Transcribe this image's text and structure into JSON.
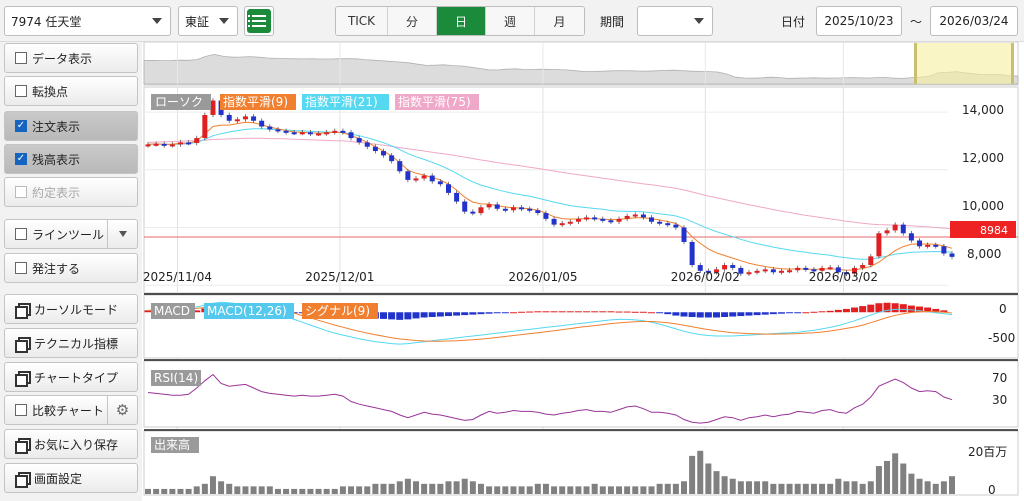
{
  "stock_select": {
    "value": "7974 任天堂"
  },
  "market_select": {
    "value": "東証"
  },
  "periods": [
    "TICK",
    "分",
    "日",
    "週",
    "月"
  ],
  "period_active": "日",
  "kikan_label": "期間",
  "kikan_select": {
    "value": ""
  },
  "date_label": "日付",
  "date_from": "2025/10/23",
  "date_sep": "～",
  "date_to": "2026/03/24",
  "sidebar": {
    "data_display": "データ表示",
    "turning_point": "転換点",
    "order_display": "注文表示",
    "position_display": "残高表示",
    "execution_display": "約定表示",
    "line_tool": "ラインツール",
    "order": "発注する",
    "cursor_mode": "カーソルモード",
    "technical": "テクニカル指標",
    "chart_type": "チャートタイプ",
    "compare_chart": "比較チャート",
    "favorites_save": "お気に入り保存",
    "screen_settings": "画面設定"
  },
  "legend_main": [
    "ローソク",
    "指数平滑(9)",
    "指数平滑(21)",
    "指数平滑(75)"
  ],
  "legend_macd": [
    "MACD",
    "MACD(12,26)",
    "シグナル(9)"
  ],
  "legend_rsi": "RSI(14)",
  "legend_volume": "出来高",
  "price_axis": [
    "14,000",
    "12,000",
    "10,000",
    "8,000"
  ],
  "current_price": "8984",
  "macd_axis": [
    "0",
    "-500"
  ],
  "rsi_axis": [
    "70",
    "30"
  ],
  "volume_axis": [
    "20百万",
    "0"
  ],
  "date_ticks": [
    "2025/11/04",
    "2025/12/01",
    "2026/01/05",
    "2026/02/02",
    "2026/03/02"
  ],
  "colors": {
    "accent": "#1b8a3a",
    "up": "#e02020",
    "down": "#2233cc",
    "ema9": "#f08030",
    "ema21": "#55d8f0",
    "ema75": "#f0a8c8",
    "rsi": "#993399",
    "volume": "#808080"
  },
  "chart_data": {
    "type": "candlestick",
    "closes": [
      12880,
      12900,
      12850,
      12880,
      12950,
      12930,
      13100,
      13900,
      14400,
      13900,
      13700,
      13750,
      13850,
      13700,
      13500,
      13400,
      13350,
      13300,
      13280,
      13300,
      13250,
      13260,
      13300,
      13350,
      13300,
      13100,
      12950,
      12800,
      12650,
      12500,
      12300,
      11950,
      11650,
      11700,
      11800,
      11600,
      11500,
      11200,
      10900,
      10550,
      10500,
      10700,
      10800,
      10650,
      10600,
      10700,
      10650,
      10600,
      10500,
      10300,
      10100,
      10150,
      10200,
      10300,
      10350,
      10300,
      10250,
      10200,
      10300,
      10400,
      10450,
      10350,
      10200,
      10150,
      10100,
      10000,
      9500,
      8700,
      8500,
      8450,
      8550,
      8700,
      8600,
      8400,
      8450,
      8500,
      8550,
      8450,
      8500,
      8520,
      8600,
      8550,
      8500,
      8600,
      8620,
      8450,
      8400,
      8600,
      8700,
      9000,
      9800,
      9900,
      10100,
      9800,
      9550,
      9350,
      9400,
      9350,
      9100,
      8984
    ],
    "ema9": [
      12880,
      12900,
      12880,
      12890,
      12920,
      12930,
      13000,
      13250,
      13500,
      13550,
      13550,
      13600,
      13650,
      13630,
      13560,
      13480,
      13420,
      13360,
      13310,
      13300,
      13280,
      13270,
      13280,
      13300,
      13290,
      13190,
      13080,
      12950,
      12800,
      12650,
      12480,
      12250,
      11990,
      11880,
      11820,
      11730,
      11650,
      11500,
      11300,
      11050,
      10880,
      10820,
      10810,
      10760,
      10710,
      10690,
      10670,
      10650,
      10600,
      10500,
      10370,
      10310,
      10290,
      10300,
      10310,
      10310,
      10290,
      10270,
      10280,
      10310,
      10340,
      10340,
      10310,
      10260,
      10210,
      10140,
      9980,
      9680,
      9450,
      9260,
      9120,
      9030,
      8940,
      8850,
      8760,
      8700,
      8650,
      8600,
      8570,
      8560,
      8570,
      8560,
      8550,
      8560,
      8570,
      8550,
      8520,
      8530,
      8580,
      8650,
      8800,
      9000,
      9200,
      9340,
      9420,
      9430,
      9430,
      9420,
      9360,
      9280
    ],
    "ema21": [
      12880,
      12890,
      12880,
      12880,
      12890,
      12900,
      12950,
      13050,
      13180,
      13250,
      13310,
      13360,
      13400,
      13420,
      13420,
      13410,
      13390,
      13380,
      13360,
      13350,
      13330,
      13320,
      13310,
      13300,
      13290,
      13240,
      13180,
      13110,
      13030,
      12940,
      12830,
      12700,
      12560,
      12450,
      12360,
      12260,
      12150,
      12020,
      11880,
      11720,
      11580,
      11470,
      11390,
      11310,
      11240,
      11180,
      11130,
      11080,
      11020,
      10950,
      10880,
      10820,
      10760,
      10720,
      10690,
      10660,
      10630,
      10590,
      10570,
      10560,
      10560,
      10540,
      10510,
      10480,
      10440,
      10400,
      10320,
      10200,
      10080,
      9960,
      9860,
      9770,
      9680,
      9590,
      9510,
      9440,
      9380,
      9320,
      9270,
      9220,
      9180,
      9140,
      9100,
      9070,
      9040,
      8990,
      8950,
      8920,
      8900,
      8900,
      8950,
      9010,
      9080,
      9110,
      9140,
      9150,
      9160,
      9170,
      9160,
      9140
    ],
    "ema75": [
      12950,
      12960,
      12970,
      12980,
      12990,
      13000,
      13010,
      13030,
      13050,
      13060,
      13070,
      13080,
      13090,
      13090,
      13090,
      13080,
      13080,
      13070,
      13060,
      13050,
      13040,
      13030,
      13020,
      13010,
      13000,
      12980,
      12950,
      12920,
      12890,
      12850,
      12810,
      12770,
      12730,
      12690,
      12650,
      12610,
      12570,
      12530,
      12490,
      12440,
      12390,
      12340,
      12300,
      12250,
      12210,
      12170,
      12130,
      12090,
      12050,
      12000,
      11960,
      11910,
      11870,
      11830,
      11790,
      11750,
      11710,
      11670,
      11630,
      11590,
      11550,
      11510,
      11480,
      11440,
      11400,
      11360,
      11300,
      11230,
      11160,
      11090,
      11030,
      10970,
      10910,
      10850,
      10790,
      10730,
      10680,
      10620,
      10570,
      10520,
      10470,
      10420,
      10380,
      10340,
      10300,
      10260,
      10220,
      10180,
      10150,
      10120,
      10100,
      10090,
      10080,
      10070,
      10060,
      10040,
      10020,
      10000,
      9980,
      9960
    ],
    "macd_hist": [
      40,
      40,
      30,
      30,
      30,
      30,
      40,
      80,
      120,
      120,
      120,
      110,
      100,
      90,
      70,
      50,
      30,
      10,
      -10,
      -20,
      -30,
      -40,
      -50,
      -60,
      -70,
      -90,
      -110,
      -120,
      -130,
      -140,
      -150,
      -160,
      -150,
      -130,
      -110,
      -100,
      -90,
      -80,
      -70,
      -60,
      -50,
      -40,
      -30,
      -20,
      -10,
      0,
      10,
      15,
      20,
      20,
      20,
      20,
      20,
      20,
      20,
      20,
      20,
      20,
      15,
      15,
      10,
      10,
      0,
      -20,
      -40,
      -70,
      -90,
      -100,
      -110,
      -110,
      -110,
      -100,
      -90,
      -80,
      -70,
      -60,
      -50,
      -40,
      -30,
      -20,
      -10,
      0,
      10,
      20,
      30,
      50,
      70,
      100,
      130,
      160,
      190,
      200,
      190,
      170,
      140,
      120,
      100,
      70,
      40
    ],
    "macd": [
      40,
      50,
      60,
      70,
      80,
      90,
      110,
      150,
      190,
      210,
      200,
      180,
      150,
      120,
      80,
      30,
      -30,
      -90,
      -150,
      -210,
      -270,
      -330,
      -390,
      -440,
      -480,
      -520,
      -560,
      -590,
      -620,
      -640,
      -660,
      -670,
      -660,
      -640,
      -620,
      -600,
      -580,
      -560,
      -540,
      -520,
      -500,
      -480,
      -460,
      -440,
      -420,
      -400,
      -380,
      -360,
      -340,
      -320,
      -300,
      -280,
      -260,
      -240,
      -220,
      -200,
      -180,
      -160,
      -150,
      -150,
      -160,
      -180,
      -210,
      -250,
      -300,
      -350,
      -400,
      -440,
      -470,
      -490,
      -500,
      -500,
      -500,
      -490,
      -480,
      -470,
      -460,
      -450,
      -440,
      -430,
      -420,
      -400,
      -380,
      -350,
      -320,
      -280,
      -230,
      -180,
      -120,
      -60,
      0,
      40,
      60,
      60,
      50,
      30,
      10,
      -10,
      -30,
      -50
    ],
    "signal": [
      40,
      45,
      50,
      55,
      60,
      70,
      80,
      100,
      120,
      140,
      155,
      165,
      165,
      160,
      140,
      110,
      75,
      30,
      -20,
      -70,
      -120,
      -170,
      -220,
      -270,
      -315,
      -360,
      -400,
      -440,
      -475,
      -505,
      -535,
      -560,
      -580,
      -595,
      -605,
      -610,
      -610,
      -605,
      -600,
      -590,
      -580,
      -565,
      -550,
      -530,
      -510,
      -490,
      -470,
      -450,
      -430,
      -410,
      -390,
      -365,
      -345,
      -320,
      -300,
      -280,
      -260,
      -240,
      -225,
      -210,
      -200,
      -195,
      -195,
      -205,
      -220,
      -245,
      -275,
      -305,
      -335,
      -365,
      -390,
      -410,
      -430,
      -440,
      -450,
      -455,
      -460,
      -460,
      -458,
      -455,
      -450,
      -440,
      -430,
      -415,
      -395,
      -370,
      -340,
      -310,
      -270,
      -220,
      -165,
      -110,
      -65,
      -30,
      -5,
      10,
      15,
      10,
      0,
      -15
    ],
    "rsi": [
      55,
      54,
      53,
      52,
      52,
      53,
      60,
      68,
      75,
      65,
      62,
      63,
      64,
      60,
      56,
      54,
      53,
      52,
      51,
      52,
      51,
      51,
      52,
      53,
      51,
      45,
      42,
      40,
      38,
      36,
      34,
      30,
      27,
      30,
      33,
      31,
      30,
      28,
      26,
      24,
      25,
      30,
      34,
      32,
      33,
      35,
      34,
      34,
      33,
      31,
      30,
      32,
      33,
      35,
      36,
      34,
      34,
      33,
      36,
      39,
      40,
      37,
      33,
      33,
      32,
      30,
      25,
      22,
      21,
      22,
      25,
      28,
      27,
      24,
      27,
      28,
      30,
      28,
      30,
      31,
      34,
      33,
      32,
      35,
      36,
      33,
      32,
      38,
      42,
      50,
      62,
      66,
      70,
      66,
      60,
      56,
      57,
      56,
      50,
      47
    ],
    "volume": [
      2,
      2,
      2,
      2,
      2,
      2,
      3,
      4,
      7,
      5,
      4,
      3,
      3,
      3,
      3,
      3,
      2,
      2,
      2,
      2,
      2,
      2,
      2,
      2,
      3,
      3,
      3,
      3,
      4,
      4,
      4,
      5,
      6,
      5,
      4,
      4,
      4,
      5,
      5,
      6,
      5,
      4,
      3,
      3,
      3,
      3,
      3,
      3,
      4,
      4,
      3,
      3,
      3,
      3,
      3,
      4,
      3,
      3,
      3,
      3,
      3,
      3,
      3,
      4,
      4,
      4,
      5,
      15,
      17,
      12,
      9,
      7,
      6,
      5,
      5,
      5,
      5,
      4,
      4,
      4,
      4,
      4,
      4,
      4,
      4,
      6,
      5,
      5,
      4,
      5,
      11,
      13,
      16,
      12,
      8,
      6,
      5,
      4,
      5,
      7
    ],
    "price_ylim": [
      7800,
      14800
    ],
    "macd_ylim": [
      -900,
      300
    ],
    "rsi_ylim": [
      0,
      100
    ],
    "volume_ylim": [
      0,
      24
    ]
  }
}
